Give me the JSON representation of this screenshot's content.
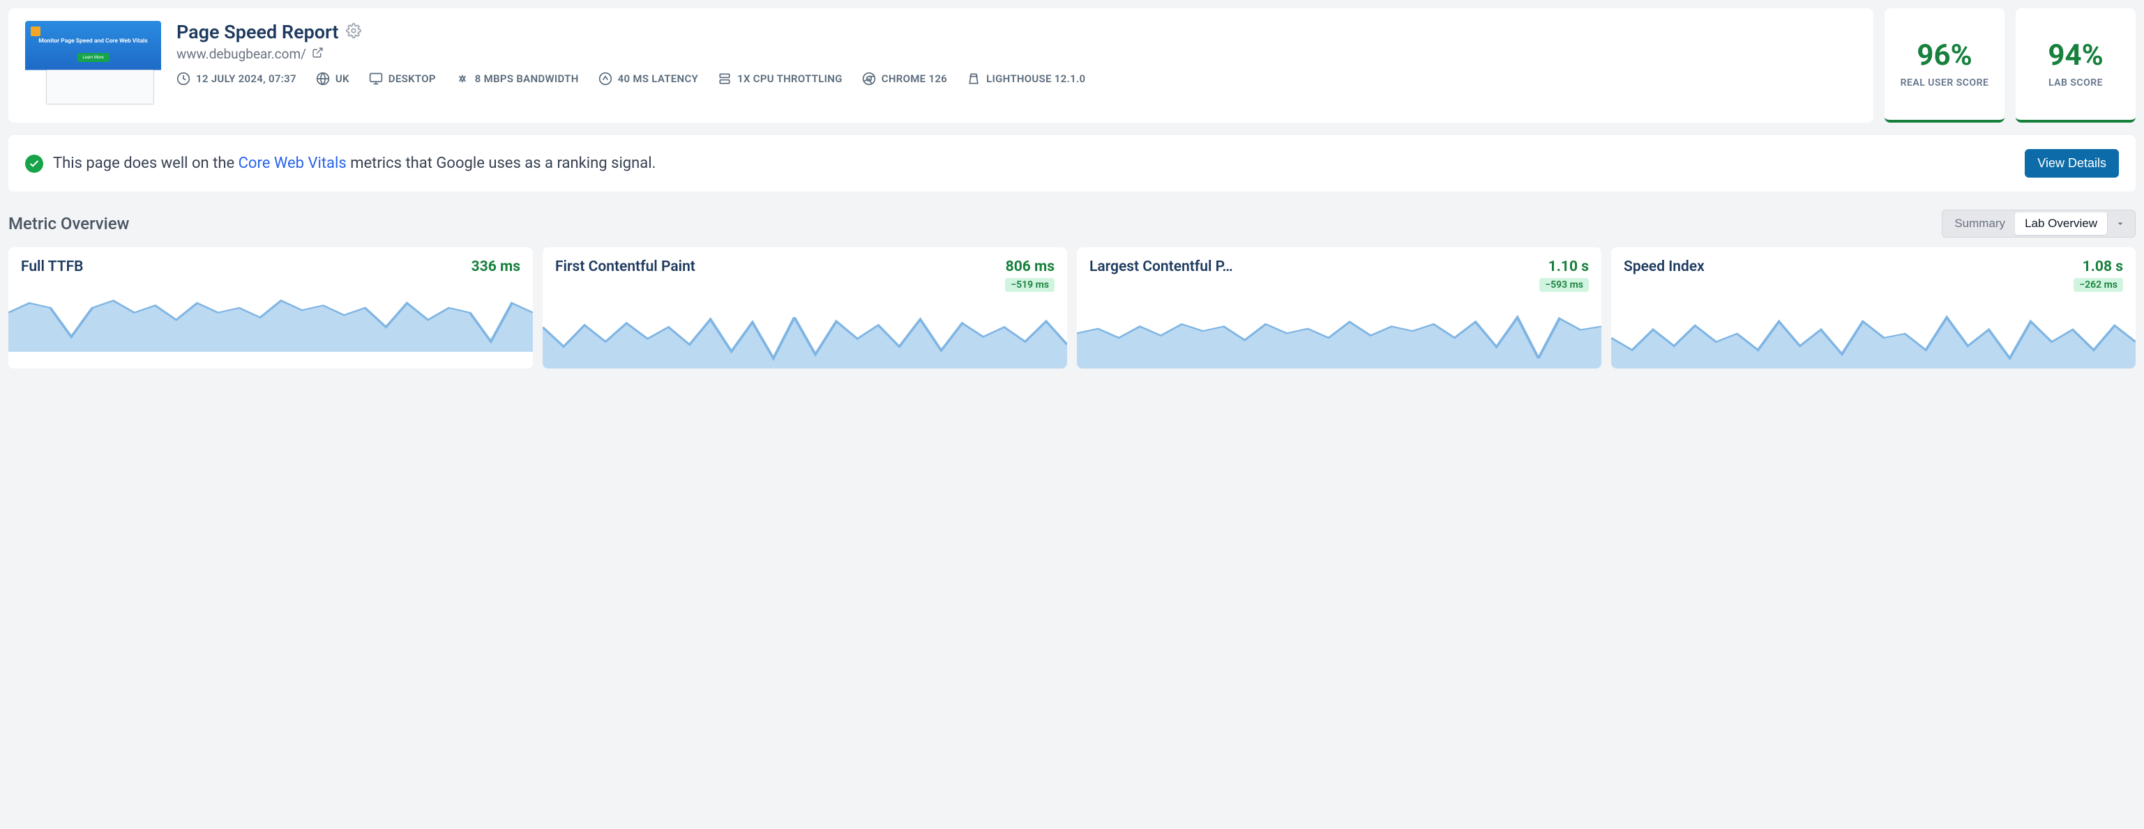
{
  "header": {
    "title": "Page Speed Report",
    "url": "www.debugbear.com/",
    "thumb_tagline": "Monitor Page Speed and Core Web Vitals",
    "meta": {
      "timestamp": "12 JULY 2024, 07:37",
      "region": "UK",
      "device": "DESKTOP",
      "bandwidth": "8 MBPS BANDWIDTH",
      "latency": "40 MS LATENCY",
      "cpu": "1X CPU THROTTLING",
      "browser": "CHROME 126",
      "lighthouse": "LIGHTHOUSE 12.1.0"
    }
  },
  "scores": {
    "real_user": {
      "value": "96%",
      "label": "REAL USER SCORE"
    },
    "lab": {
      "value": "94%",
      "label": "LAB SCORE"
    },
    "color": "#16803c"
  },
  "banner": {
    "prefix": "This page does well on the ",
    "link_text": "Core Web Vitals",
    "suffix": " metrics that Google uses as a ranking signal.",
    "button": "View Details"
  },
  "overview": {
    "title": "Metric Overview",
    "toggle": {
      "summary": "Summary",
      "lab": "Lab Overview"
    }
  },
  "metrics": [
    {
      "name": "Full TTFB",
      "value": "336 ms",
      "delta": null,
      "spark": [
        58,
        62,
        60,
        48,
        60,
        63,
        58,
        61,
        55,
        62,
        58,
        60,
        56,
        63,
        59,
        61,
        57,
        60,
        52,
        62,
        55,
        60,
        58,
        46,
        62,
        58
      ]
    },
    {
      "name": "First Contentful Paint",
      "value": "806 ms",
      "delta": "−519 ms",
      "spark": [
        70,
        50,
        72,
        55,
        74,
        58,
        70,
        52,
        78,
        45,
        75,
        38,
        80,
        42,
        76,
        58,
        72,
        50,
        78,
        46,
        74,
        60,
        70,
        55,
        76,
        52
      ]
    },
    {
      "name": "Largest Contentful P…",
      "value": "1.10 s",
      "delta": "−593 ms",
      "spark": [
        52,
        56,
        48,
        58,
        50,
        60,
        54,
        58,
        46,
        60,
        52,
        56,
        48,
        62,
        50,
        58,
        54,
        60,
        48,
        62,
        40,
        66,
        30,
        65,
        55,
        58
      ]
    },
    {
      "name": "Speed Index",
      "value": "1.08 s",
      "delta": "−262 ms",
      "spark": [
        54,
        48,
        58,
        50,
        60,
        52,
        56,
        48,
        62,
        50,
        58,
        46,
        62,
        54,
        56,
        48,
        64,
        50,
        58,
        44,
        62,
        52,
        58,
        48,
        60,
        52
      ]
    }
  ],
  "colors": {
    "spark_fill": "#bcd9f2",
    "spark_stroke": "#7fb5e3",
    "delta_bg": "#d1f4e0",
    "green": "#16803c",
    "link": "#2563eb"
  }
}
